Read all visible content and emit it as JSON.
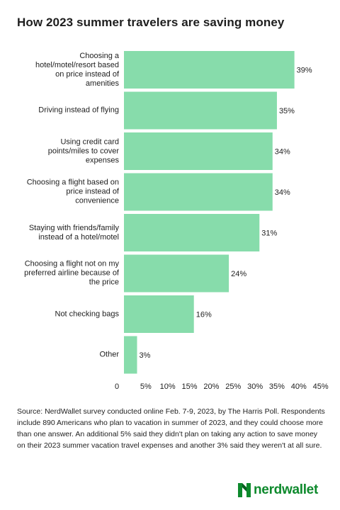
{
  "header": {
    "title": "How 2023 summer travelers are saving money"
  },
  "chart_data": {
    "type": "bar",
    "orientation": "horizontal",
    "title": "How 2023 summer travelers are saving money",
    "categories": [
      "Choosing a hotel/motel/resort based on price instead of amenities",
      "Driving instead of flying",
      "Using credit card points/miles to cover expenses",
      "Choosing a flight based on price instead of convenience",
      "Staying with friends/family instead of a hotel/motel",
      "Choosing a flight not on my preferred airline because of the price",
      "Not checking bags",
      "Other"
    ],
    "label_lines": [
      [
        "Choosing a",
        "hotel/motel/resort based",
        "on price instead of",
        "amenities"
      ],
      [
        "Driving instead of flying"
      ],
      [
        "Using credit card",
        "points/miles to cover",
        "expenses"
      ],
      [
        "Choosing a flight based on",
        "price instead of",
        "convenience"
      ],
      [
        "Staying with friends/family",
        "instead of a hotel/motel"
      ],
      [
        "Choosing a flight not on my",
        "preferred airline because of",
        "the price"
      ],
      [
        "Not checking bags"
      ],
      [
        "Other"
      ]
    ],
    "values": [
      39,
      35,
      34,
      34,
      31,
      24,
      16,
      3
    ],
    "value_labels": [
      "39%",
      "35%",
      "34%",
      "34%",
      "31%",
      "24%",
      "16%",
      "3%"
    ],
    "x_ticks": [
      "0",
      "5%",
      "10%",
      "15%",
      "20%",
      "25%",
      "30%",
      "35%",
      "40%",
      "45%"
    ],
    "xlim": [
      0,
      45
    ],
    "grid": false,
    "bar_color": "#87dcab"
  },
  "footer": {
    "source": "Source: NerdWallet survey conducted online Feb. 7-9, 2023, by The Harris Poll. Respondents include 890 Americans who plan to vacation in summer of 2023, and they could choose more than one answer. An additional 5% said they didn't plan on taking any action to save money on their 2023 summer vacation travel expenses and another 3% said they weren't at all sure.",
    "brand": "nerdwallet"
  },
  "colors": {
    "bar": "#87dcab",
    "brand_green": "#0e8a2d",
    "brand_dark": "#075e20",
    "text": "#1e1e1e"
  }
}
